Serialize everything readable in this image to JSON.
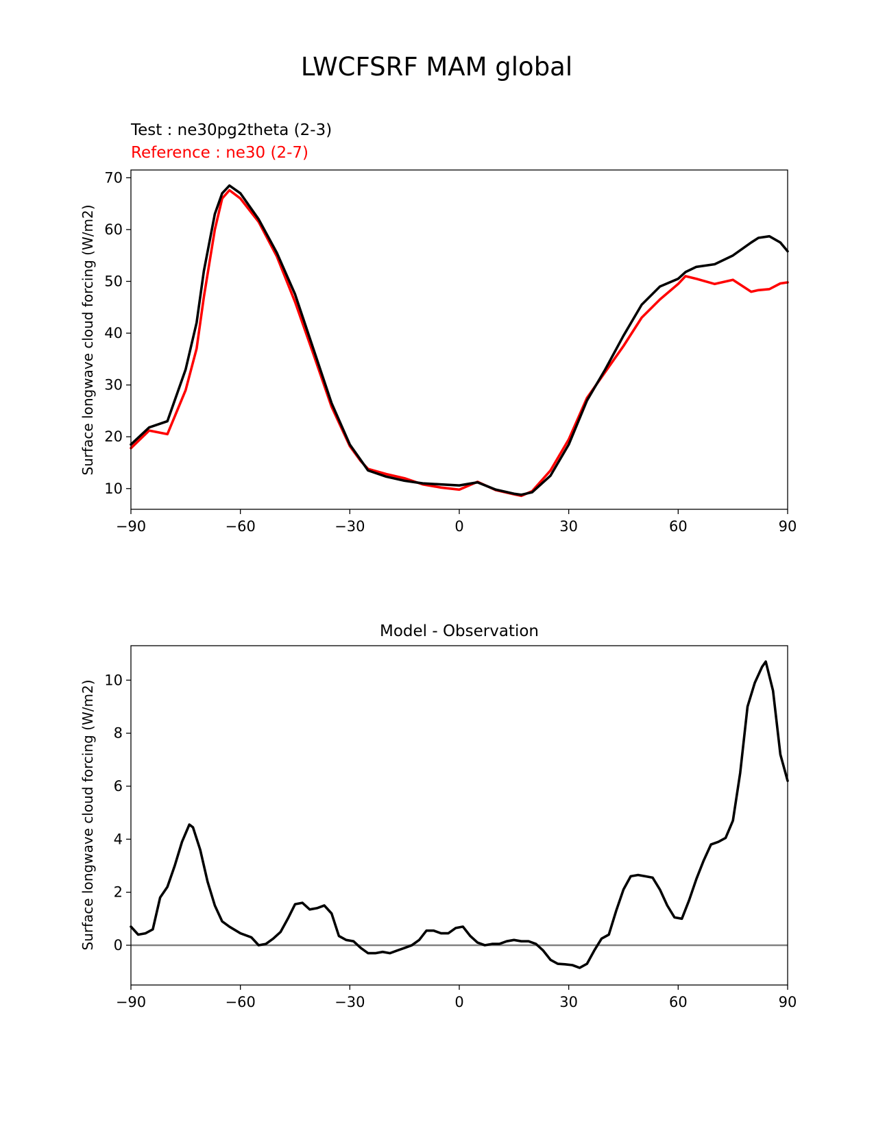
{
  "figure": {
    "title": "LWCFSRF MAM global"
  },
  "chart_data": [
    {
      "type": "line",
      "test_label": "Test : ne30pg2theta (2-3)",
      "reference_label": "Reference : ne30 (2-7)",
      "colors": {
        "test": "#000000",
        "reference": "#ff0000"
      },
      "xlabel": "",
      "ylabel": "Surface longwave cloud forcing (W/m2)",
      "xlim": [
        -90,
        90
      ],
      "ylim": [
        6,
        71.5
      ],
      "xticks": [
        -90,
        -60,
        -30,
        0,
        30,
        60,
        90
      ],
      "xtick_labels": [
        "−90",
        "−60",
        "−30",
        "0",
        "30",
        "60",
        "90"
      ],
      "yticks": [
        10,
        20,
        30,
        40,
        50,
        60,
        70
      ],
      "ytick_labels": [
        "10",
        "20",
        "30",
        "40",
        "50",
        "60",
        "70"
      ],
      "x": [
        -90,
        -85,
        -80,
        -75,
        -72,
        -70,
        -67,
        -65,
        -63,
        -60,
        -55,
        -50,
        -45,
        -40,
        -35,
        -30,
        -27,
        -25,
        -20,
        -15,
        -10,
        -5,
        0,
        5,
        10,
        15,
        17,
        20,
        25,
        30,
        35,
        40,
        45,
        50,
        55,
        60,
        62,
        65,
        70,
        75,
        80,
        82,
        85,
        88,
        90
      ],
      "series": [
        {
          "name": "Test",
          "color": "#000000",
          "values": [
            18.5,
            21.8,
            23.0,
            33.0,
            42.0,
            52.0,
            63.0,
            67.0,
            68.5,
            67.0,
            62.0,
            55.5,
            47.5,
            37.0,
            26.5,
            18.5,
            15.5,
            13.5,
            12.3,
            11.5,
            11.0,
            10.8,
            10.6,
            11.2,
            9.8,
            9.0,
            8.8,
            9.3,
            12.5,
            18.5,
            27.0,
            33.0,
            39.5,
            45.5,
            49.0,
            50.5,
            51.8,
            52.8,
            53.3,
            55.0,
            57.5,
            58.4,
            58.7,
            57.5,
            55.8
          ]
        },
        {
          "name": "Reference",
          "color": "#ff0000",
          "values": [
            17.8,
            21.2,
            20.5,
            29.0,
            37.0,
            47.0,
            60.0,
            66.0,
            67.6,
            66.0,
            61.5,
            54.8,
            46.0,
            36.0,
            25.8,
            18.2,
            15.3,
            13.8,
            12.8,
            12.0,
            10.8,
            10.2,
            9.8,
            11.3,
            9.7,
            8.9,
            8.6,
            9.5,
            13.5,
            19.5,
            27.5,
            32.5,
            37.5,
            43.0,
            46.5,
            49.5,
            51.0,
            50.5,
            49.5,
            50.3,
            48.0,
            48.3,
            48.5,
            49.6,
            49.8
          ]
        }
      ]
    },
    {
      "type": "line",
      "title": "Model - Observation",
      "xlabel": "",
      "ylabel": "Surface longwave cloud forcing (W/m2)",
      "xlim": [
        -90,
        90
      ],
      "ylim": [
        -1.5,
        11.3
      ],
      "xticks": [
        -90,
        -60,
        -30,
        0,
        30,
        60,
        90
      ],
      "xtick_labels": [
        "−90",
        "−60",
        "−30",
        "0",
        "30",
        "60",
        "90"
      ],
      "yticks": [
        0,
        2,
        4,
        6,
        8,
        10
      ],
      "ytick_labels": [
        "0",
        "2",
        "4",
        "6",
        "8",
        "10"
      ],
      "zero_line_color": "#808080",
      "x": [
        -90,
        -88,
        -86,
        -84,
        -82,
        -80,
        -78,
        -76,
        -74,
        -73,
        -71,
        -69,
        -67,
        -65,
        -63,
        -60,
        -57,
        -55,
        -53,
        -51,
        -49,
        -47,
        -45,
        -43,
        -41,
        -39,
        -37,
        -35,
        -33,
        -31,
        -29,
        -27,
        -25,
        -23,
        -21,
        -19,
        -17,
        -15,
        -13,
        -11,
        -9,
        -7,
        -5,
        -3,
        -1,
        1,
        3,
        5,
        7,
        9,
        11,
        13,
        15,
        17,
        19,
        21,
        23,
        25,
        27,
        29,
        31,
        33,
        35,
        37,
        39,
        41,
        43,
        45,
        47,
        49,
        51,
        53,
        55,
        57,
        59,
        61,
        63,
        65,
        67,
        69,
        71,
        73,
        75,
        77,
        79,
        81,
        83,
        84,
        86,
        88,
        90
      ],
      "series": [
        {
          "name": "Model - Observation",
          "color": "#000000",
          "values": [
            0.7,
            0.4,
            0.45,
            0.6,
            1.8,
            2.2,
            3.0,
            3.9,
            4.55,
            4.45,
            3.6,
            2.4,
            1.5,
            0.9,
            0.7,
            0.45,
            0.3,
            0.0,
            0.05,
            0.25,
            0.5,
            1.0,
            1.55,
            1.6,
            1.35,
            1.4,
            1.5,
            1.2,
            0.35,
            0.2,
            0.15,
            -0.1,
            -0.3,
            -0.3,
            -0.25,
            -0.3,
            -0.2,
            -0.1,
            0.0,
            0.2,
            0.55,
            0.55,
            0.45,
            0.45,
            0.65,
            0.7,
            0.35,
            0.1,
            0.0,
            0.05,
            0.05,
            0.15,
            0.2,
            0.15,
            0.15,
            0.05,
            -0.2,
            -0.55,
            -0.7,
            -0.72,
            -0.75,
            -0.85,
            -0.7,
            -0.2,
            0.25,
            0.4,
            1.3,
            2.1,
            2.6,
            2.65,
            2.6,
            2.55,
            2.1,
            1.5,
            1.05,
            1.0,
            1.7,
            2.5,
            3.2,
            3.8,
            3.9,
            4.05,
            4.7,
            6.5,
            9.0,
            9.9,
            10.5,
            10.7,
            9.6,
            7.2,
            6.2
          ]
        }
      ]
    }
  ]
}
